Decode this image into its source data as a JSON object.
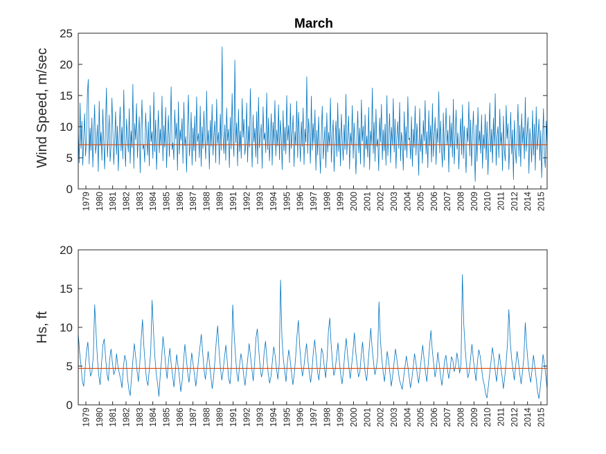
{
  "chart_data": [
    {
      "type": "line",
      "title": "March",
      "xlabel": "",
      "ylabel": "Wind Speed, m/sec",
      "ylim": [
        0,
        25
      ],
      "yticks": [
        0,
        5,
        10,
        15,
        20,
        25
      ],
      "xlim": [
        1979,
        2016
      ],
      "grid": false,
      "legend": "none",
      "line_color": "#0072BD",
      "reference_color": "#D95319",
      "xtick_labels": [
        "1979",
        "1980",
        "1981",
        "1982",
        "1983",
        "1984",
        "1985",
        "1986",
        "1987",
        "1988",
        "1989",
        "1991",
        "1992",
        "1993",
        "1994",
        "1995",
        "1996",
        "1997",
        "1998",
        "1999",
        "2000",
        "2001",
        "2002",
        "2003",
        "2004",
        "2005",
        "2006",
        "2007",
        "2008",
        "2009",
        "2010",
        "2011",
        "2012",
        "2014",
        "2015"
      ],
      "reference_line": 7.1,
      "series": [
        {
          "values": [
            9.5,
            4.2,
            13.8,
            6.5,
            10.9,
            3.8,
            8.4,
            12.1,
            5.3,
            7.8,
            15.2,
            17.6,
            4.0,
            9.8,
            6.2,
            11.4,
            3.5,
            8.9,
            13.5,
            5.7,
            7.2,
            10.3,
            2.8,
            14.1,
            6.9,
            9.1,
            4.6,
            12.8,
            7.5,
            3.2,
            10.7,
            16.2,
            5.1,
            8.3,
            11.9,
            4.4,
            6.8,
            14.6,
            9.4,
            3.9,
            7.7,
            12.4,
            5.5,
            10.1,
            2.9,
            8.7,
            13.2,
            6.1,
            9.9,
            4.8,
            15.9,
            7.3,
            3.6,
            11.2,
            8.1,
            5.9,
            12.9,
            4.1,
            9.3,
            6.6,
            16.8,
            3.3,
            10.5,
            7.9,
            13.7,
            5.0,
            8.6,
            11.6,
            2.6,
            9.7,
            14.3,
            6.4,
            7.1,
            4.3,
            12.2,
            8.8,
            5.4,
            10.8,
            3.7,
            13.4,
            7.6,
            9.2,
            4.9,
            15.5,
            6.0,
            11.1,
            3.1,
            8.2,
            12.6,
            5.8,
            9.6,
            7.0,
            14.9,
            4.5,
            10.2,
            6.7,
            13.1,
            3.4,
            8.5,
            11.8,
            5.2,
            9.0,
            16.4,
            6.3,
            7.4,
            4.7,
            12.7,
            8.0,
            10.6,
            3.0,
            14.0,
            5.6,
            9.5,
            7.8,
            11.3,
            4.1,
            13.9,
            6.9,
            8.4,
            2.7,
            10.4,
            15.1,
            5.3,
            7.2,
            12.3,
            3.8,
            9.8,
            6.1,
            11.7,
            4.4,
            14.8,
            7.6,
            8.9,
            5.0,
            13.3,
            3.6,
            10.0,
            6.5,
            12.5,
            8.2,
            4.8,
            15.7,
            7.0,
            9.4,
            3.2,
            11.0,
            6.8,
            13.6,
            5.4,
            8.7,
            10.9,
            4.2,
            14.4,
            7.3,
            9.1,
            3.9,
            12.0,
            6.2,
            22.8,
            8.5,
            5.7,
            10.3,
            4.6,
            13.0,
            7.7,
            9.6,
            3.4,
            11.5,
            6.4,
            15.3,
            8.1,
            5.2,
            20.7,
            7.4,
            10.6,
            3.7,
            12.8,
            6.0,
            9.3,
            4.9,
            14.5,
            8.3,
            11.2,
            5.5,
            7.1,
            13.8,
            4.3,
            10.1,
            6.7,
            16.1,
            8.8,
            3.5,
            11.9,
            7.5,
            9.7,
            5.1,
            12.4,
            4.0,
            14.7,
            6.6,
            8.6,
            10.4,
            3.3,
            13.2,
            7.9,
            9.0,
            5.8,
            15.4,
            6.3,
            11.4,
            4.5,
            8.0,
            12.1,
            3.8,
            10.7,
            7.2,
            14.2,
            5.3,
            9.5,
            6.9,
            13.5,
            4.7,
            11.0,
            8.4,
            3.1,
            12.6,
            6.1,
            9.9,
            5.6,
            15.0,
            7.8,
            10.2,
            4.2,
            13.7,
            6.5,
            8.9,
            11.8,
            3.6,
            9.2,
            7.0,
            14.1,
            5.0,
            12.3,
            8.2,
            4.4,
            10.8,
            6.8,
            13.0,
            3.9,
            9.6,
            7.5,
            18.0,
            5.7,
            11.3,
            8.7,
            4.1,
            14.9,
            6.2,
            10.5,
            7.3,
            12.7,
            3.0,
            9.4,
            5.4,
            11.6,
            6.6,
            2.5,
            8.8,
            13.3,
            4.8,
            7.6,
            10.0,
            3.4,
            12.2,
            5.9,
            9.1,
            6.9,
            14.6,
            4.3,
            8.3,
            11.1,
            2.8,
            7.4,
            10.9,
            5.2,
            13.8,
            6.0,
            9.7,
            3.7,
            12.0,
            7.9,
            4.6,
            10.3,
            6.3,
            15.2,
            5.5,
            8.6,
            11.7,
            3.2,
            9.0,
            7.1,
            13.4,
            4.9,
            10.6,
            6.7,
            2.4,
            8.1,
            12.5,
            5.8,
            9.8,
            4.0,
            14.3,
            7.7,
            10.1,
            3.5,
            11.9,
            6.4,
            8.5,
            5.1,
            13.1,
            3.1,
            9.3,
            7.2,
            16.2,
            5.7,
            10.7,
            4.4,
            12.8,
            6.8,
            8.0,
            2.9,
            11.4,
            7.5,
            13.6,
            4.7,
            9.5,
            6.1,
            10.4,
            3.8,
            15.0,
            5.3,
            8.7,
            12.1,
            4.2,
            9.9,
            7.0,
            14.5,
            5.9,
            11.2,
            3.3,
            8.4,
            10.8,
            6.5,
            13.9,
            4.5,
            9.1,
            7.6,
            3.0,
            12.4,
            6.2,
            10.0,
            5.0,
            14.8,
            7.9,
            8.2,
            4.8,
            11.6,
            3.6,
            9.6,
            6.6,
            13.3,
            5.4,
            10.5,
            7.3,
            2.2,
            12.9,
            6.0,
            8.8,
            4.1,
            11.0,
            7.7,
            14.2,
            5.6,
            9.2,
            3.4,
            12.6,
            6.9,
            10.2,
            4.3,
            13.7,
            5.2,
            8.6,
            11.5,
            3.9,
            9.7,
            7.4,
            15.6,
            5.8,
            10.9,
            6.3,
            3.5,
            12.2,
            4.6,
            8.9,
            13.0,
            7.1,
            9.4,
            2.7,
            11.8,
            6.7,
            10.6,
            5.1,
            14.4,
            4.0,
            8.3,
            12.7,
            6.4,
            9.0,
            3.2,
            7.8,
            11.3,
            5.5,
            13.5,
            4.9,
            10.1,
            6.1,
            2.6,
            9.8,
            7.6,
            14.0,
            5.3,
            11.1,
            3.7,
            8.5,
            12.5,
            6.8,
            1.2,
            10.3,
            4.4,
            13.1,
            7.2,
            9.3,
            5.7,
            11.9,
            3.3,
            8.7,
            6.5,
            12.0,
            4.7,
            10.8,
            2.3,
            7.4,
            13.8,
            5.9,
            9.6,
            4.2,
            11.4,
            6.9,
            15.3,
            3.8,
            8.4,
            10.0,
            5.0,
            12.8,
            7.0,
            9.1,
            2.9,
            11.7,
            6.2,
            4.5,
            13.4,
            8.1,
            10.5,
            3.1,
            7.7,
            12.3,
            5.6,
            9.5,
            1.5,
            11.0,
            6.6,
            4.1,
            8.6,
            13.6,
            5.2,
            10.2,
            3.6,
            12.1,
            7.3,
            9.9,
            4.8,
            14.7,
            6.0,
            8.9,
            11.5,
            2.5,
            9.7,
            7.5,
            4.3,
            12.6,
            5.4,
            10.4,
            3.0,
            13.2,
            6.3,
            8.2,
            11.2,
            4.6,
            9.4,
            1.8,
            7.8,
            12.9,
            5.1,
            3.4,
            10.9,
            6.7
          ]
        },
        {
          "values": [
            7.1,
            7.1
          ]
        }
      ]
    },
    {
      "type": "line",
      "title": "",
      "xlabel": "",
      "ylabel": "Hs, ft",
      "ylim": [
        0,
        20
      ],
      "yticks": [
        0,
        5,
        10,
        15,
        20
      ],
      "xlim": [
        1979,
        2016
      ],
      "grid": false,
      "legend": "none",
      "line_color": "#0072BD",
      "reference_color": "#D95319",
      "xtick_labels": [
        "1979",
        "1980",
        "1981",
        "1982",
        "1983",
        "1984",
        "1985",
        "1986",
        "1987",
        "1988",
        "1989",
        "1991",
        "1992",
        "1993",
        "1994",
        "1995",
        "1996",
        "1997",
        "1998",
        "1999",
        "2000",
        "2001",
        "2002",
        "2003",
        "2004",
        "2005",
        "2006",
        "2007",
        "2008",
        "2009",
        "2010",
        "2011",
        "2012",
        "2014",
        "2015"
      ],
      "reference_line": 4.7,
      "series": [
        {
          "values": [
            9.2,
            6.8,
            5.1,
            3.0,
            2.4,
            4.6,
            6.9,
            8.1,
            5.5,
            3.7,
            4.2,
            6.3,
            12.9,
            9.4,
            6.0,
            3.8,
            2.6,
            5.2,
            7.7,
            8.5,
            6.1,
            4.0,
            3.1,
            5.9,
            7.2,
            5.4,
            3.9,
            4.5,
            6.6,
            5.0,
            4.1,
            3.3,
            2.2,
            4.8,
            6.4,
            5.7,
            3.5,
            2.0,
            1.2,
            3.6,
            5.8,
            7.9,
            6.2,
            4.4,
            3.0,
            5.3,
            8.4,
            11.0,
            7.6,
            5.1,
            3.2,
            2.5,
            4.7,
            6.8,
            13.5,
            9.6,
            6.3,
            4.1,
            2.8,
            1.1,
            3.9,
            6.0,
            8.8,
            7.1,
            4.9,
            3.4,
            5.6,
            7.3,
            5.2,
            3.8,
            2.3,
            4.3,
            6.5,
            5.0,
            3.6,
            1.7,
            3.1,
            5.5,
            7.8,
            6.1,
            4.2,
            2.9,
            4.6,
            6.7,
            5.3,
            3.9,
            2.4,
            4.0,
            5.9,
            7.4,
            9.1,
            6.8,
            4.5,
            3.3,
            5.0,
            6.9,
            5.4,
            3.7,
            2.1,
            3.5,
            5.8,
            8.3,
            10.2,
            7.0,
            4.8,
            3.2,
            4.4,
            6.2,
            7.7,
            5.6,
            3.4,
            2.7,
            4.9,
            12.9,
            9.2,
            6.4,
            4.1,
            3.0,
            5.1,
            6.6,
            5.5,
            3.8,
            2.5,
            4.2,
            6.0,
            7.9,
            6.3,
            4.6,
            3.1,
            5.4,
            8.6,
            9.8,
            7.2,
            5.0,
            3.6,
            4.3,
            6.8,
            8.2,
            5.9,
            4.0,
            2.8,
            3.7,
            5.6,
            7.5,
            6.4,
            4.7,
            3.3,
            5.2,
            16.1,
            8.7,
            6.0,
            4.4,
            3.0,
            5.5,
            7.1,
            5.8,
            4.2,
            2.6,
            3.9,
            6.1,
            8.9,
            10.9,
            7.6,
            5.3,
            3.7,
            4.8,
            6.5,
            7.9,
            5.7,
            4.1,
            2.9,
            4.5,
            6.9,
            8.4,
            6.2,
            4.3,
            3.2,
            5.0,
            7.3,
            6.6,
            4.9,
            3.5,
            5.9,
            9.5,
            11.2,
            7.8,
            5.4,
            3.8,
            4.6,
            6.3,
            8.0,
            5.6,
            3.9,
            2.7,
            4.4,
            6.7,
            8.6,
            6.5,
            4.8,
            3.4,
            5.1,
            7.0,
            9.3,
            6.8,
            5.2,
            3.6,
            4.2,
            6.4,
            8.1,
            5.8,
            4.0,
            3.1,
            5.3,
            7.6,
            9.9,
            7.3,
            5.5,
            3.9,
            4.7,
            6.2,
            13.3,
            8.5,
            6.1,
            4.3,
            3.0,
            5.0,
            6.9,
            5.7,
            4.1,
            2.4,
            3.8,
            5.4,
            7.2,
            6.0,
            4.5,
            3.2,
            2.6,
            2.0,
            3.5,
            4.9,
            6.3,
            5.1,
            3.7,
            2.2,
            3.3,
            4.8,
            6.6,
            5.5,
            3.9,
            2.8,
            4.4,
            6.1,
            7.7,
            5.9,
            4.2,
            3.0,
            5.2,
            7.5,
            9.6,
            7.0,
            5.3,
            3.6,
            4.6,
            6.8,
            5.4,
            3.8,
            2.5,
            4.0,
            5.7,
            6.4,
            4.7,
            3.4,
            4.5,
            6.2,
            5.8,
            4.3,
            5.0,
            6.7,
            5.6,
            4.1,
            5.3,
            16.8,
            10.5,
            7.4,
            5.1,
            3.5,
            4.2,
            6.0,
            7.8,
            5.9,
            4.4,
            3.1,
            5.5,
            7.1,
            6.3,
            4.8,
            3.3,
            2.6,
            1.4,
            0.9,
            2.4,
            4.1,
            5.7,
            7.4,
            6.1,
            4.4,
            3.0,
            4.9,
            6.6,
            5.2,
            3.7,
            2.1,
            3.6,
            5.4,
            7.9,
            12.3,
            8.2,
            6.0,
            4.5,
            3.2,
            5.1,
            6.9,
            5.6,
            4.0,
            2.7,
            4.3,
            6.2,
            10.6,
            7.7,
            5.5,
            3.9,
            2.9,
            4.6,
            6.4,
            5.0,
            3.4,
            1.7,
            0.8,
            2.3,
            4.2,
            6.5,
            5.3,
            3.8,
            2.0
          ]
        },
        {
          "values": [
            4.7,
            4.7
          ]
        }
      ]
    }
  ]
}
